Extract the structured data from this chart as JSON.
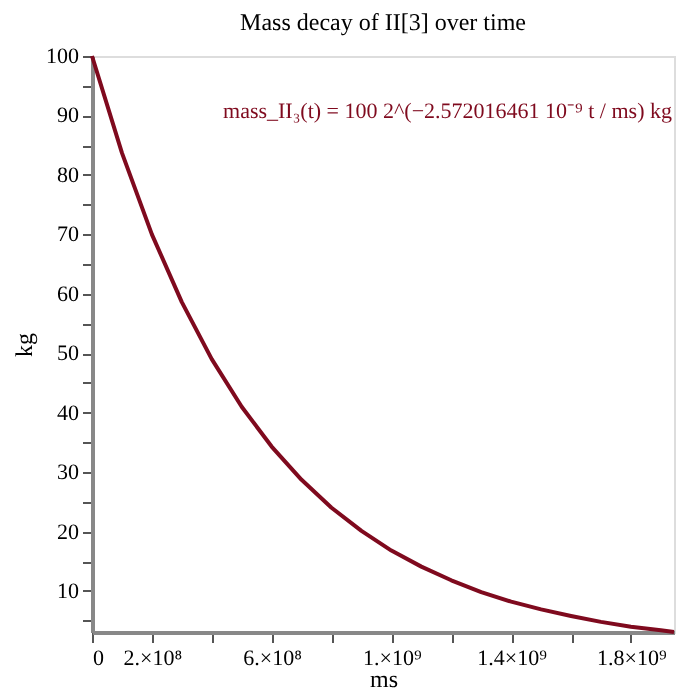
{
  "chart_data": {
    "type": "line",
    "title": "Mass decay of II[3] over time",
    "xlabel": "ms",
    "ylabel": "kg",
    "annotations": [
      "mass_II₃(t) = 100 2^(−2.572016461 10⁻⁹ t / ms) kg"
    ],
    "x": [
      0,
      100000000,
      200000000,
      300000000,
      400000000,
      500000000,
      600000000,
      700000000,
      800000000,
      900000000,
      1000000000,
      1100000000,
      1200000000,
      1300000000,
      1400000000,
      1500000000,
      1600000000,
      1700000000,
      1800000000,
      1900000000,
      1944000000
    ],
    "series": [
      {
        "color": "#7f0a1e",
        "values": [
          100,
          83.7,
          70.0,
          58.6,
          49.0,
          41.0,
          34.3,
          28.7,
          24.0,
          20.1,
          16.8,
          14.1,
          11.8,
          9.8,
          8.2,
          6.9,
          5.8,
          4.8,
          4.0,
          3.4,
          3.1
        ]
      }
    ],
    "xlim": [
      0,
      1944000000
    ],
    "ylim": [
      3.1,
      100
    ],
    "xticks": [
      0,
      {
        "value": 200000000,
        "label": "2.×10⁸"
      },
      {
        "value": 400000000,
        "label": null
      },
      {
        "value": 600000000,
        "label": "6.×10⁸"
      },
      {
        "value": 800000000,
        "label": null
      },
      {
        "value": 1000000000,
        "label": "1.×10⁹"
      },
      {
        "value": 1200000000,
        "label": null
      },
      {
        "value": 1400000000,
        "label": "1.4×10⁹"
      },
      {
        "value": 1600000000,
        "label": null
      },
      {
        "value": 1800000000,
        "label": "1.8×10⁹"
      }
    ],
    "yticks": [
      {
        "value": 5,
        "label": null
      },
      10,
      {
        "value": 15,
        "label": null
      },
      20,
      {
        "value": 25,
        "label": null
      },
      30,
      {
        "value": 35,
        "label": null
      },
      40,
      {
        "value": 45,
        "label": null
      },
      50,
      {
        "value": 55,
        "label": null
      },
      60,
      {
        "value": 65,
        "label": null
      },
      70,
      {
        "value": 75,
        "label": null
      },
      80,
      {
        "value": 85,
        "label": null
      },
      90,
      {
        "value": 95,
        "label": null
      },
      100
    ],
    "grid": false,
    "marker": "none",
    "line_style": "solid"
  }
}
